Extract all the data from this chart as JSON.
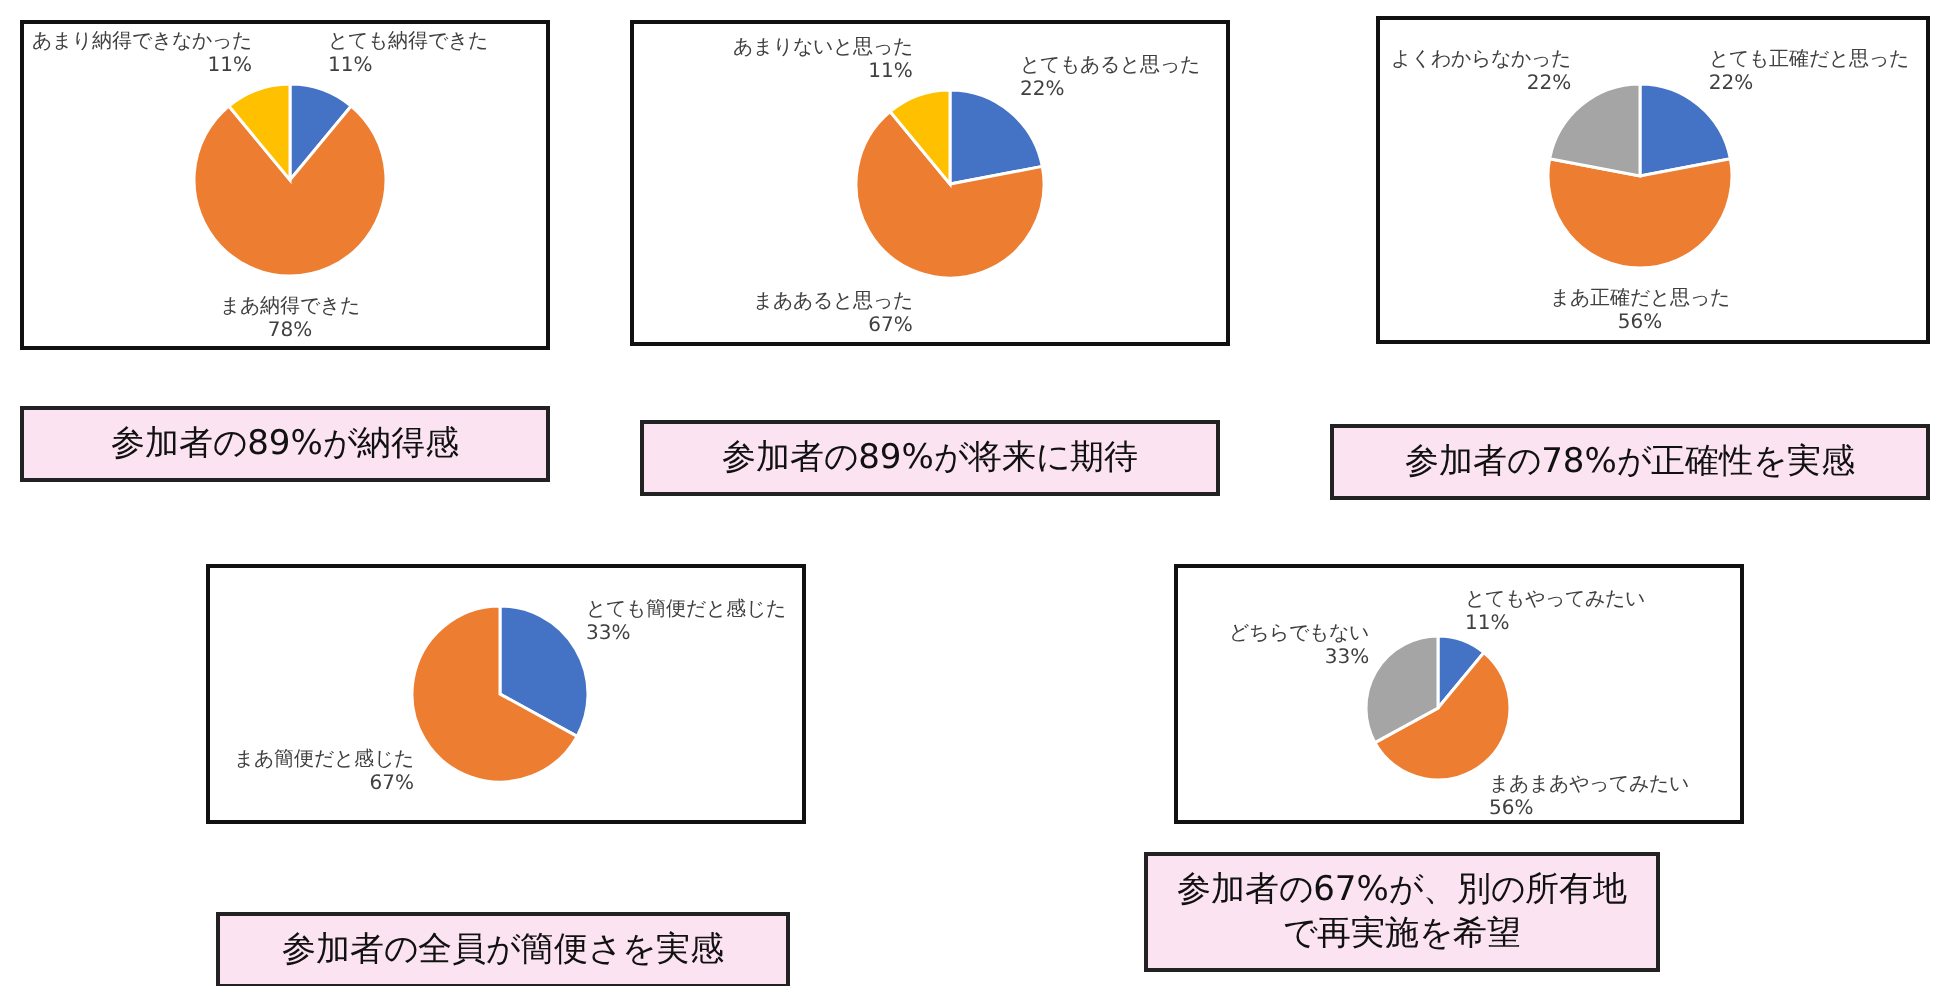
{
  "chart_data": [
    {
      "type": "pie",
      "categories": [
        "とても納得できた",
        "まあ納得できた",
        "あまり納得できなかった"
      ],
      "values": [
        11,
        78,
        11
      ],
      "value_labels": [
        "11%",
        "78%",
        "11%"
      ],
      "colors": [
        "#4472c4",
        "#ed7d31",
        "#ffc000"
      ],
      "annotations": [
        "参加者の89%が納得感"
      ]
    },
    {
      "type": "pie",
      "categories": [
        "とてもあると思った",
        "まああると思った",
        "あまりないと思った"
      ],
      "values": [
        22,
        67,
        11
      ],
      "value_labels": [
        "22%",
        "67%",
        "11%"
      ],
      "colors": [
        "#4472c4",
        "#ed7d31",
        "#ffc000"
      ],
      "annotations": [
        "参加者の89%が将来に期待"
      ]
    },
    {
      "type": "pie",
      "categories": [
        "とても正確だと思った",
        "まあ正確だと思った",
        "よくわからなかった"
      ],
      "values": [
        22,
        56,
        22
      ],
      "value_labels": [
        "22%",
        "56%",
        "22%"
      ],
      "colors": [
        "#4472c4",
        "#ed7d31",
        "#a5a5a5"
      ],
      "annotations": [
        "参加者の78%が正確性を実感"
      ]
    },
    {
      "type": "pie",
      "categories": [
        "とても簡便だと感じた",
        "まあ簡便だと感じた"
      ],
      "values": [
        33,
        67
      ],
      "value_labels": [
        "33%",
        "67%"
      ],
      "colors": [
        "#4472c4",
        "#ed7d31"
      ],
      "annotations": [
        "参加者の全員が簡便さを実感"
      ]
    },
    {
      "type": "pie",
      "categories": [
        "とてもやってみたい",
        "まあまあやってみたい",
        "どちらでもない"
      ],
      "values": [
        11,
        56,
        33
      ],
      "value_labels": [
        "11%",
        "56%",
        "33%"
      ],
      "colors": [
        "#4472c4",
        "#ed7d31",
        "#a5a5a5"
      ],
      "annotations": [
        "参加者の67%が、別の所有地で再実施を希望"
      ]
    }
  ]
}
